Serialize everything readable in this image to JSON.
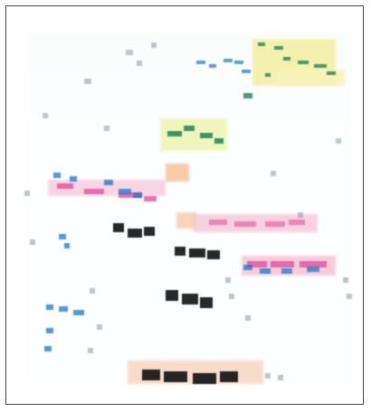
{
  "image": {
    "description_visible_text": "",
    "colors": {
      "border": "#444444",
      "yellow": "#f4f0a7",
      "green": "#2d8a5c",
      "blue": "#1c78c8",
      "magenta": "#e2479a",
      "pink": "#f6c7d9",
      "orange": "#f6b98b",
      "black": "#111111",
      "gray": "#8b9aa6"
    }
  }
}
